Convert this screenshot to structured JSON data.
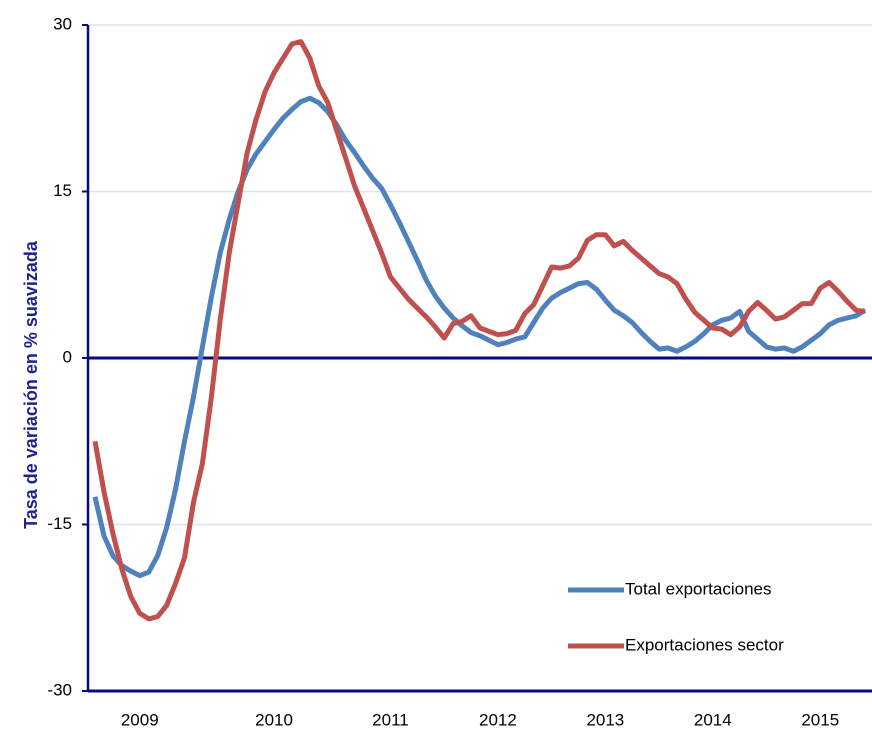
{
  "chart_data": {
    "type": "line",
    "y_label": "Tasa de variación en % suavizada",
    "categories": [
      null,
      null,
      null,
      null,
      null,
      "2009",
      null,
      null,
      null,
      null,
      null,
      null,
      null,
      null,
      null,
      null,
      null,
      null,
      null,
      null,
      "2010",
      null,
      null,
      null,
      null,
      null,
      null,
      null,
      null,
      null,
      null,
      null,
      null,
      "2011",
      null,
      null,
      null,
      null,
      null,
      null,
      null,
      null,
      null,
      null,
      null,
      "2012",
      null,
      null,
      null,
      null,
      null,
      null,
      null,
      null,
      null,
      null,
      null,
      "2013",
      null,
      null,
      null,
      null,
      null,
      null,
      null,
      null,
      null,
      null,
      null,
      "2014",
      null,
      null,
      null,
      null,
      null,
      null,
      null,
      null,
      null,
      null,
      null,
      "2015",
      null,
      null,
      null,
      null,
      null
    ],
    "series": [
      {
        "name": "Total exportaciones",
        "color": "#4f81bd",
        "values": [
          -12.5,
          -16,
          -17.8,
          -18.7,
          -19.2,
          -19.6,
          -19.3,
          -17.8,
          -15.3,
          -11.8,
          -7.5,
          -3.5,
          1,
          5.5,
          9.5,
          12.5,
          15,
          17,
          18.4,
          19.5,
          20.6,
          21.6,
          22.4,
          23.1,
          23.4,
          23,
          22.2,
          21,
          19.6,
          18.5,
          17.3,
          16.2,
          15.3,
          13.8,
          12.2,
          10.5,
          8.8,
          7,
          5.6,
          4.5,
          3.6,
          2.9,
          2.3,
          2,
          1.6,
          1.2,
          1.4,
          1.7,
          1.9,
          3.2,
          4.5,
          5.4,
          5.9,
          6.3,
          6.7,
          6.8,
          6.2,
          5.2,
          4.3,
          3.8,
          3.2,
          2.3,
          1.5,
          0.8,
          0.9,
          0.6,
          1,
          1.5,
          2.2,
          3,
          3.4,
          3.6,
          4.2,
          2.4,
          1.7,
          1,
          0.8,
          0.9,
          0.6,
          1,
          1.6,
          2.2,
          3,
          3.4,
          3.6,
          3.8,
          4.3
        ]
      },
      {
        "name": "Exportaciones sector",
        "color": "#c0504d",
        "values": [
          -7.5,
          -12,
          -15.8,
          -19,
          -21.5,
          -23,
          -23.5,
          -23.3,
          -22.3,
          -20.3,
          -18,
          -13,
          -9.5,
          -3.5,
          3.5,
          9.5,
          14,
          18.5,
          21.5,
          24,
          25.7,
          27,
          28.3,
          28.5,
          27,
          24.5,
          23,
          20.5,
          18,
          15.5,
          13.5,
          11.5,
          9.5,
          7.3,
          6.3,
          5.3,
          4.5,
          3.7,
          2.8,
          1.8,
          3.1,
          3.3,
          3.8,
          2.7,
          2.4,
          2.1,
          2.2,
          2.5,
          4,
          4.8,
          6.5,
          8.2,
          8.1,
          8.3,
          9,
          10.6,
          11.1,
          11.1,
          10.1,
          10.5,
          9.7,
          9,
          8.3,
          7.6,
          7.3,
          6.7,
          5.3,
          4.1,
          3.4,
          2.7,
          2.6,
          2.1,
          2.8,
          4.2,
          5,
          4.3,
          3.5,
          3.7,
          4.3,
          4.9,
          4.9,
          6.3,
          6.8,
          6,
          5.1,
          4.3,
          4.2
        ]
      }
    ],
    "ylim": [
      -30,
      30
    ],
    "yticks": [
      -30,
      -15,
      0,
      15,
      30
    ],
    "grid": true,
    "legend": "lower right"
  }
}
